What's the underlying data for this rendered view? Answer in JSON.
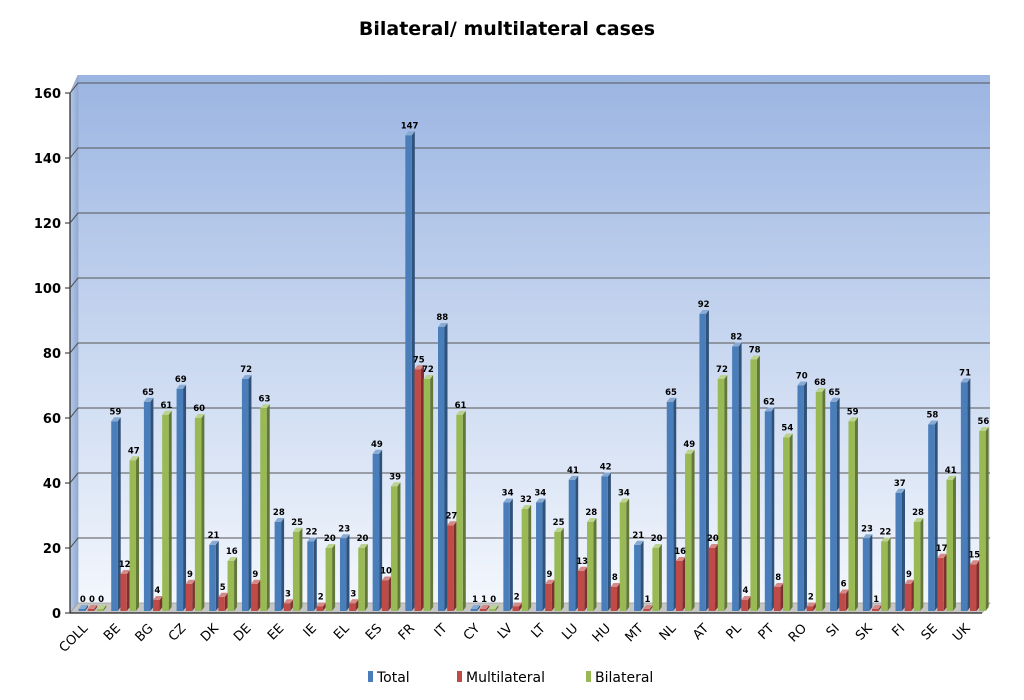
{
  "chart_data": {
    "type": "bar",
    "title": "Bilateral/ multilateral cases",
    "xlabel": "",
    "ylabel": "",
    "ylim": [
      0,
      160
    ],
    "yticks": [
      0,
      20,
      40,
      60,
      80,
      100,
      120,
      140,
      160
    ],
    "grid": true,
    "legend_position": "bottom",
    "categories": [
      "COLL",
      "BE",
      "BG",
      "CZ",
      "DK",
      "DE",
      "EE",
      "IE",
      "EL",
      "ES",
      "FR",
      "IT",
      "CY",
      "LV",
      "LT",
      "LU",
      "HU",
      "MT",
      "NL",
      "AT",
      "PL",
      "PT",
      "RO",
      "SI",
      "SK",
      "FI",
      "SE",
      "UK"
    ],
    "series": [
      {
        "name": "Total",
        "color": "#4a7ebb",
        "values": [
          0,
          59,
          65,
          69,
          21,
          72,
          28,
          22,
          23,
          49,
          147,
          88,
          1,
          34,
          34,
          41,
          42,
          21,
          65,
          92,
          82,
          62,
          70,
          65,
          23,
          37,
          58,
          71
        ]
      },
      {
        "name": "Multilateral",
        "color": "#be4b48",
        "values": [
          0,
          12,
          4,
          9,
          5,
          9,
          3,
          2,
          3,
          10,
          75,
          27,
          1,
          2,
          9,
          13,
          8,
          1,
          16,
          20,
          4,
          8,
          2,
          6,
          1,
          9,
          17,
          15
        ]
      },
      {
        "name": "Bilateral",
        "color": "#98b954",
        "values": [
          0,
          47,
          61,
          60,
          16,
          63,
          25,
          20,
          20,
          39,
          72,
          61,
          0,
          32,
          25,
          28,
          34,
          20,
          49,
          72,
          78,
          54,
          68,
          59,
          22,
          28,
          41,
          56
        ]
      }
    ]
  }
}
